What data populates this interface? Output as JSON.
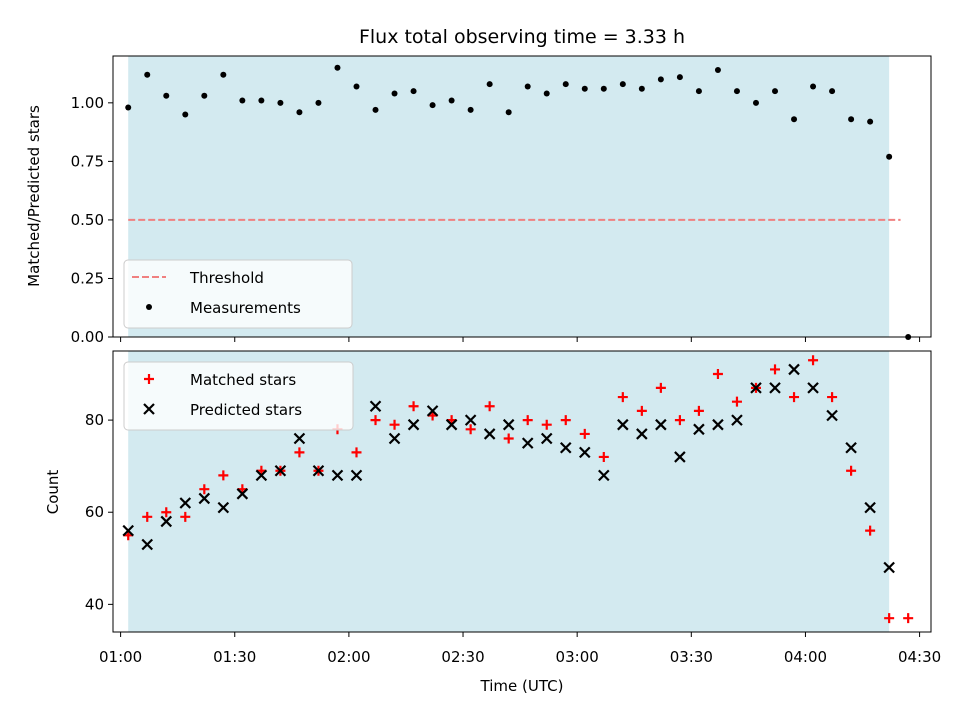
{
  "chart_data": [
    {
      "type": "scatter",
      "title": "Flux total observing time = 3.33 h",
      "xlabel": "",
      "ylabel": "Matched/Predicted stars",
      "ylim": [
        0,
        1.2
      ],
      "yticks": [
        "0.00",
        "0.25",
        "0.50",
        "0.75",
        "1.00"
      ],
      "ytick_values": [
        0,
        0.25,
        0.5,
        0.75,
        1.0
      ],
      "shaded_interval": [
        "01:02",
        "04:22"
      ],
      "shade_color": "#d3eaf0",
      "threshold": {
        "name": "Threshold",
        "value": 0.5,
        "x_range": [
          "01:02",
          "04:25"
        ],
        "color": "#f08080"
      },
      "series": [
        {
          "name": "Measurements",
          "marker": "dot",
          "color": "#000000",
          "x": [
            "01:02",
            "01:07",
            "01:12",
            "01:17",
            "01:22",
            "01:27",
            "01:32",
            "01:37",
            "01:42",
            "01:47",
            "01:52",
            "01:57",
            "02:02",
            "02:07",
            "02:12",
            "02:17",
            "02:22",
            "02:27",
            "02:32",
            "02:37",
            "02:42",
            "02:47",
            "02:52",
            "02:57",
            "03:02",
            "03:07",
            "03:12",
            "03:17",
            "03:22",
            "03:27",
            "03:32",
            "03:37",
            "03:42",
            "03:47",
            "03:52",
            "03:57",
            "04:02",
            "04:07",
            "04:12",
            "04:17",
            "04:22",
            "04:27"
          ],
          "y": [
            0.98,
            1.12,
            1.03,
            0.95,
            1.03,
            1.12,
            1.01,
            1.01,
            1.0,
            0.96,
            1.0,
            1.15,
            1.07,
            0.97,
            1.04,
            1.05,
            0.99,
            1.01,
            0.97,
            1.08,
            0.96,
            1.07,
            1.04,
            1.08,
            1.06,
            1.06,
            1.08,
            1.06,
            1.1,
            1.11,
            1.05,
            1.14,
            1.05,
            1.0,
            1.05,
            0.93,
            1.07,
            1.05,
            0.93,
            0.92,
            0.77,
            0.0
          ]
        }
      ],
      "legend": {
        "location": "lower-left",
        "entries": [
          "Threshold",
          "Measurements"
        ]
      }
    },
    {
      "type": "scatter",
      "title": "",
      "xlabel": "Time (UTC)",
      "ylabel": "Count",
      "ylim": [
        34,
        95
      ],
      "yticks": [
        "40",
        "60",
        "80"
      ],
      "ytick_values": [
        40,
        60,
        80
      ],
      "xlim": [
        "00:58",
        "04:33"
      ],
      "xticks": [
        "01:00",
        "01:30",
        "02:00",
        "02:30",
        "03:00",
        "03:30",
        "04:00",
        "04:30"
      ],
      "shaded_interval": [
        "01:02",
        "04:22"
      ],
      "shade_color": "#d3eaf0",
      "series": [
        {
          "name": "Matched stars",
          "marker": "plus",
          "color": "#ff0000",
          "x": [
            "01:02",
            "01:07",
            "01:12",
            "01:17",
            "01:22",
            "01:27",
            "01:32",
            "01:37",
            "01:42",
            "01:47",
            "01:52",
            "01:57",
            "02:02",
            "02:07",
            "02:12",
            "02:17",
            "02:22",
            "02:27",
            "02:32",
            "02:37",
            "02:42",
            "02:47",
            "02:52",
            "02:57",
            "03:02",
            "03:07",
            "03:12",
            "03:17",
            "03:22",
            "03:27",
            "03:32",
            "03:37",
            "03:42",
            "03:47",
            "03:52",
            "03:57",
            "04:02",
            "04:07",
            "04:12",
            "04:17",
            "04:22",
            "04:27"
          ],
          "y": [
            55,
            59,
            60,
            59,
            65,
            68,
            65,
            69,
            69,
            73,
            69,
            78,
            73,
            80,
            79,
            83,
            81,
            80,
            78,
            83,
            76,
            80,
            79,
            80,
            77,
            72,
            85,
            82,
            87,
            80,
            82,
            90,
            84,
            87,
            91,
            85,
            93,
            85,
            69,
            56,
            37,
            37
          ]
        },
        {
          "name": "Predicted stars",
          "marker": "x",
          "color": "#000000",
          "x": [
            "01:02",
            "01:07",
            "01:12",
            "01:17",
            "01:22",
            "01:27",
            "01:32",
            "01:37",
            "01:42",
            "01:47",
            "01:52",
            "01:57",
            "02:02",
            "02:07",
            "02:12",
            "02:17",
            "02:22",
            "02:27",
            "02:32",
            "02:37",
            "02:42",
            "02:47",
            "02:52",
            "02:57",
            "03:02",
            "03:07",
            "03:12",
            "03:17",
            "03:22",
            "03:27",
            "03:32",
            "03:37",
            "03:42",
            "03:47",
            "03:52",
            "03:57",
            "04:02",
            "04:07",
            "04:12",
            "04:17",
            "04:22"
          ],
          "y": [
            56,
            53,
            58,
            62,
            63,
            61,
            64,
            68,
            69,
            76,
            69,
            68,
            68,
            83,
            76,
            79,
            82,
            79,
            80,
            77,
            79,
            75,
            76,
            74,
            73,
            68,
            79,
            77,
            79,
            72,
            78,
            79,
            80,
            87,
            87,
            91,
            87,
            81,
            74,
            61,
            48
          ]
        }
      ],
      "legend": {
        "location": "upper-left",
        "entries": [
          "Matched stars",
          "Predicted stars"
        ]
      }
    }
  ]
}
